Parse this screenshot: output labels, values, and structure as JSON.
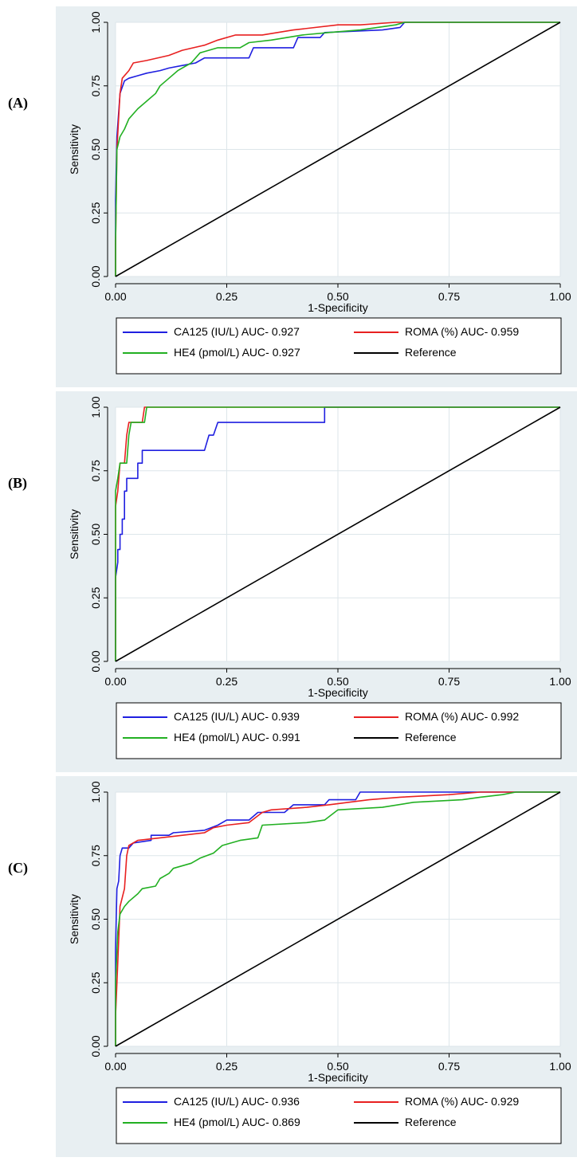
{
  "colors": {
    "panel_background": "#e8eff2",
    "plot_background": "#ffffff",
    "grid": "#dde6ea",
    "CA125": "#1f1fe0",
    "ROMA": "#e82020",
    "HE4": "#22b022",
    "Reference": "#000000"
  },
  "chart_data": [
    {
      "panel_label": "(A)",
      "type": "line",
      "xlabel": "1-Specificity",
      "ylabel": "Sensitivity",
      "xlim": [
        0,
        1
      ],
      "ylim": [
        0,
        1
      ],
      "xticks": [
        "0.00",
        "0.25",
        "0.50",
        "0.75",
        "1.00"
      ],
      "yticks": [
        "0.00",
        "0.25",
        "0.50",
        "0.75",
        "1.00"
      ],
      "grid": true,
      "legend_position": "bottom",
      "legend": [
        {
          "label": "CA125 (IU/L) AUC- 0.927",
          "color": "#1f1fe0"
        },
        {
          "label": "ROMA (%) AUC- 0.959",
          "color": "#e82020"
        },
        {
          "label": "HE4 (pmol/L) AUC- 0.927",
          "color": "#22b022"
        },
        {
          "label": "Reference",
          "color": "#000000"
        }
      ],
      "series": [
        {
          "name": "CA125 (IU/L)",
          "color": "#1f1fe0",
          "points": [
            [
              0,
              0
            ],
            [
              0,
              0.3
            ],
            [
              0.003,
              0.55
            ],
            [
              0.01,
              0.72
            ],
            [
              0.02,
              0.77
            ],
            [
              0.03,
              0.78
            ],
            [
              0.05,
              0.79
            ],
            [
              0.07,
              0.8
            ],
            [
              0.1,
              0.81
            ],
            [
              0.12,
              0.82
            ],
            [
              0.15,
              0.83
            ],
            [
              0.18,
              0.84
            ],
            [
              0.2,
              0.86
            ],
            [
              0.25,
              0.86
            ],
            [
              0.3,
              0.86
            ],
            [
              0.31,
              0.9
            ],
            [
              0.4,
              0.9
            ],
            [
              0.41,
              0.94
            ],
            [
              0.46,
              0.94
            ],
            [
              0.47,
              0.96
            ],
            [
              0.6,
              0.97
            ],
            [
              0.64,
              0.98
            ],
            [
              0.65,
              1.0
            ],
            [
              1,
              1
            ]
          ]
        },
        {
          "name": "ROMA (%)",
          "color": "#e82020",
          "points": [
            [
              0,
              0
            ],
            [
              0,
              0.12
            ],
            [
              0.003,
              0.5
            ],
            [
              0.01,
              0.72
            ],
            [
              0.015,
              0.78
            ],
            [
              0.03,
              0.81
            ],
            [
              0.04,
              0.84
            ],
            [
              0.07,
              0.85
            ],
            [
              0.12,
              0.87
            ],
            [
              0.15,
              0.89
            ],
            [
              0.2,
              0.91
            ],
            [
              0.23,
              0.93
            ],
            [
              0.27,
              0.95
            ],
            [
              0.33,
              0.95
            ],
            [
              0.4,
              0.97
            ],
            [
              0.5,
              0.99
            ],
            [
              0.55,
              0.99
            ],
            [
              0.63,
              1.0
            ],
            [
              1,
              1
            ]
          ]
        },
        {
          "name": "HE4 (pmol/L)",
          "color": "#22b022",
          "points": [
            [
              0,
              0
            ],
            [
              0,
              0.13
            ],
            [
              0.003,
              0.5
            ],
            [
              0.01,
              0.55
            ],
            [
              0.02,
              0.58
            ],
            [
              0.03,
              0.62
            ],
            [
              0.05,
              0.66
            ],
            [
              0.07,
              0.69
            ],
            [
              0.09,
              0.72
            ],
            [
              0.1,
              0.75
            ],
            [
              0.12,
              0.78
            ],
            [
              0.14,
              0.81
            ],
            [
              0.17,
              0.84
            ],
            [
              0.19,
              0.88
            ],
            [
              0.23,
              0.9
            ],
            [
              0.28,
              0.9
            ],
            [
              0.3,
              0.92
            ],
            [
              0.35,
              0.93
            ],
            [
              0.42,
              0.95
            ],
            [
              0.48,
              0.96
            ],
            [
              0.55,
              0.97
            ],
            [
              0.63,
              0.99
            ],
            [
              0.65,
              1.0
            ],
            [
              1,
              1
            ]
          ]
        },
        {
          "name": "Reference",
          "color": "#000000",
          "points": [
            [
              0,
              0
            ],
            [
              1,
              1
            ]
          ]
        }
      ]
    },
    {
      "panel_label": "(B)",
      "type": "line",
      "xlabel": "1-Specificity",
      "ylabel": "Sensitivity",
      "xlim": [
        0,
        1
      ],
      "ylim": [
        0,
        1
      ],
      "xticks": [
        "0.00",
        "0.25",
        "0.50",
        "0.75",
        "1.00"
      ],
      "yticks": [
        "0.00",
        "0.25",
        "0.50",
        "0.75",
        "1.00"
      ],
      "grid": true,
      "legend_position": "bottom",
      "legend": [
        {
          "label": "CA125 (IU/L) AUC- 0.939",
          "color": "#1f1fe0"
        },
        {
          "label": "ROMA (%) AUC- 0.992",
          "color": "#e82020"
        },
        {
          "label": "HE4 (pmol/L) AUC- 0.991",
          "color": "#22b022"
        },
        {
          "label": "Reference",
          "color": "#000000"
        }
      ],
      "series": [
        {
          "name": "CA125 (IU/L)",
          "color": "#1f1fe0",
          "points": [
            [
              0,
              0
            ],
            [
              0,
              0.33
            ],
            [
              0.005,
              0.39
            ],
            [
              0.005,
              0.44
            ],
            [
              0.01,
              0.44
            ],
            [
              0.01,
              0.5
            ],
            [
              0.015,
              0.5
            ],
            [
              0.015,
              0.56
            ],
            [
              0.02,
              0.56
            ],
            [
              0.02,
              0.67
            ],
            [
              0.025,
              0.67
            ],
            [
              0.025,
              0.72
            ],
            [
              0.05,
              0.72
            ],
            [
              0.05,
              0.78
            ],
            [
              0.06,
              0.78
            ],
            [
              0.06,
              0.83
            ],
            [
              0.2,
              0.83
            ],
            [
              0.21,
              0.89
            ],
            [
              0.22,
              0.89
            ],
            [
              0.23,
              0.94
            ],
            [
              0.47,
              0.94
            ],
            [
              0.47,
              1.0
            ],
            [
              1,
              1
            ]
          ]
        },
        {
          "name": "ROMA (%)",
          "color": "#e82020",
          "points": [
            [
              0,
              0
            ],
            [
              0,
              0.61
            ],
            [
              0.005,
              0.67
            ],
            [
              0.01,
              0.78
            ],
            [
              0.02,
              0.78
            ],
            [
              0.025,
              0.89
            ],
            [
              0.03,
              0.94
            ],
            [
              0.06,
              0.94
            ],
            [
              0.065,
              1.0
            ],
            [
              1,
              1
            ]
          ]
        },
        {
          "name": "HE4 (pmol/L)",
          "color": "#22b022",
          "points": [
            [
              0,
              0
            ],
            [
              0,
              0.67
            ],
            [
              0.005,
              0.72
            ],
            [
              0.01,
              0.78
            ],
            [
              0.025,
              0.78
            ],
            [
              0.03,
              0.89
            ],
            [
              0.035,
              0.94
            ],
            [
              0.065,
              0.94
            ],
            [
              0.07,
              1.0
            ],
            [
              1,
              1
            ]
          ]
        },
        {
          "name": "Reference",
          "color": "#000000",
          "points": [
            [
              0,
              0
            ],
            [
              1,
              1
            ]
          ]
        }
      ]
    },
    {
      "panel_label": "(C)",
      "type": "line",
      "xlabel": "1-Specificity",
      "ylabel": "Sensitivity",
      "xlim": [
        0,
        1
      ],
      "ylim": [
        0,
        1
      ],
      "xticks": [
        "0.00",
        "0.25",
        "0.50",
        "0.75",
        "1.00"
      ],
      "yticks": [
        "0.00",
        "0.25",
        "0.50",
        "0.75",
        "1.00"
      ],
      "grid": true,
      "legend_position": "bottom",
      "legend": [
        {
          "label": "CA125 (IU/L) AUC- 0.936",
          "color": "#1f1fe0"
        },
        {
          "label": "ROMA (%) AUC- 0.929",
          "color": "#e82020"
        },
        {
          "label": "HE4 (pmol/L) AUC- 0.869",
          "color": "#22b022"
        },
        {
          "label": "Reference",
          "color": "#000000"
        }
      ],
      "series": [
        {
          "name": "CA125 (IU/L)",
          "color": "#1f1fe0",
          "points": [
            [
              0,
              0
            ],
            [
              0,
              0.38
            ],
            [
              0.003,
              0.62
            ],
            [
              0.007,
              0.65
            ],
            [
              0.01,
              0.75
            ],
            [
              0.015,
              0.78
            ],
            [
              0.03,
              0.78
            ],
            [
              0.04,
              0.8
            ],
            [
              0.08,
              0.81
            ],
            [
              0.08,
              0.83
            ],
            [
              0.12,
              0.83
            ],
            [
              0.13,
              0.84
            ],
            [
              0.2,
              0.85
            ],
            [
              0.23,
              0.87
            ],
            [
              0.25,
              0.89
            ],
            [
              0.3,
              0.89
            ],
            [
              0.32,
              0.92
            ],
            [
              0.38,
              0.92
            ],
            [
              0.4,
              0.95
            ],
            [
              0.47,
              0.95
            ],
            [
              0.48,
              0.97
            ],
            [
              0.54,
              0.97
            ],
            [
              0.55,
              1.0
            ],
            [
              1,
              1
            ]
          ]
        },
        {
          "name": "ROMA (%)",
          "color": "#e82020",
          "points": [
            [
              0,
              0
            ],
            [
              0,
              0.12
            ],
            [
              0.005,
              0.33
            ],
            [
              0.01,
              0.55
            ],
            [
              0.02,
              0.62
            ],
            [
              0.025,
              0.75
            ],
            [
              0.03,
              0.79
            ],
            [
              0.05,
              0.81
            ],
            [
              0.1,
              0.82
            ],
            [
              0.2,
              0.84
            ],
            [
              0.22,
              0.86
            ],
            [
              0.25,
              0.87
            ],
            [
              0.3,
              0.88
            ],
            [
              0.33,
              0.92
            ],
            [
              0.35,
              0.93
            ],
            [
              0.43,
              0.94
            ],
            [
              0.48,
              0.95
            ],
            [
              0.57,
              0.97
            ],
            [
              0.64,
              0.98
            ],
            [
              0.75,
              0.99
            ],
            [
              0.82,
              1.0
            ],
            [
              1,
              1
            ]
          ]
        },
        {
          "name": "HE4 (pmol/L)",
          "color": "#22b022",
          "points": [
            [
              0,
              0
            ],
            [
              0,
              0.25
            ],
            [
              0.005,
              0.45
            ],
            [
              0.01,
              0.52
            ],
            [
              0.02,
              0.55
            ],
            [
              0.03,
              0.57
            ],
            [
              0.05,
              0.6
            ],
            [
              0.06,
              0.62
            ],
            [
              0.09,
              0.63
            ],
            [
              0.1,
              0.66
            ],
            [
              0.12,
              0.68
            ],
            [
              0.13,
              0.7
            ],
            [
              0.17,
              0.72
            ],
            [
              0.19,
              0.74
            ],
            [
              0.22,
              0.76
            ],
            [
              0.24,
              0.79
            ],
            [
              0.28,
              0.81
            ],
            [
              0.32,
              0.82
            ],
            [
              0.33,
              0.87
            ],
            [
              0.43,
              0.88
            ],
            [
              0.47,
              0.89
            ],
            [
              0.5,
              0.93
            ],
            [
              0.6,
              0.94
            ],
            [
              0.67,
              0.96
            ],
            [
              0.78,
              0.97
            ],
            [
              0.82,
              0.98
            ],
            [
              0.87,
              0.99
            ],
            [
              0.9,
              1.0
            ],
            [
              1,
              1
            ]
          ]
        },
        {
          "name": "Reference",
          "color": "#000000",
          "points": [
            [
              0,
              0
            ],
            [
              1,
              1
            ]
          ]
        }
      ]
    }
  ]
}
